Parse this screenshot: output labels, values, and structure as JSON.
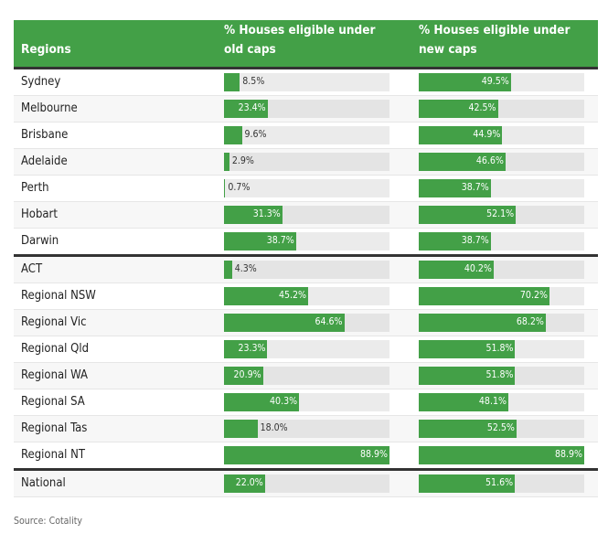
{
  "chart_data": {
    "type": "table",
    "columns": [
      "Regions",
      "% Houses eligible under old caps",
      "% Houses eligible under new caps"
    ],
    "scale_max": 88.9,
    "bar_color": "#43a047",
    "rows": [
      {
        "region": "Sydney",
        "old": 8.5,
        "new": 49.5
      },
      {
        "region": "Melbourne",
        "old": 23.4,
        "new": 42.5
      },
      {
        "region": "Brisbane",
        "old": 9.6,
        "new": 44.9
      },
      {
        "region": "Adelaide",
        "old": 2.9,
        "new": 46.6
      },
      {
        "region": "Perth",
        "old": 0.7,
        "new": 38.7
      },
      {
        "region": "Hobart",
        "old": 31.3,
        "new": 52.1
      },
      {
        "region": "Darwin",
        "old": 38.7,
        "new": 38.7
      },
      {
        "region": "ACT",
        "old": 4.3,
        "new": 40.2
      },
      {
        "region": "Regional NSW",
        "old": 45.2,
        "new": 70.2
      },
      {
        "region": "Regional Vic",
        "old": 64.6,
        "new": 68.2
      },
      {
        "region": "Regional Qld",
        "old": 23.3,
        "new": 51.8
      },
      {
        "region": "Regional WA",
        "old": 20.9,
        "new": 51.8
      },
      {
        "region": "Regional SA",
        "old": 40.3,
        "new": 48.1
      },
      {
        "region": "Regional Tas",
        "old": 18.0,
        "new": 52.5
      },
      {
        "region": "Regional NT",
        "old": 88.9,
        "new": 88.9
      },
      {
        "region": "National",
        "old": 22.0,
        "new": 51.6
      }
    ],
    "source": "Source: Cotality"
  }
}
